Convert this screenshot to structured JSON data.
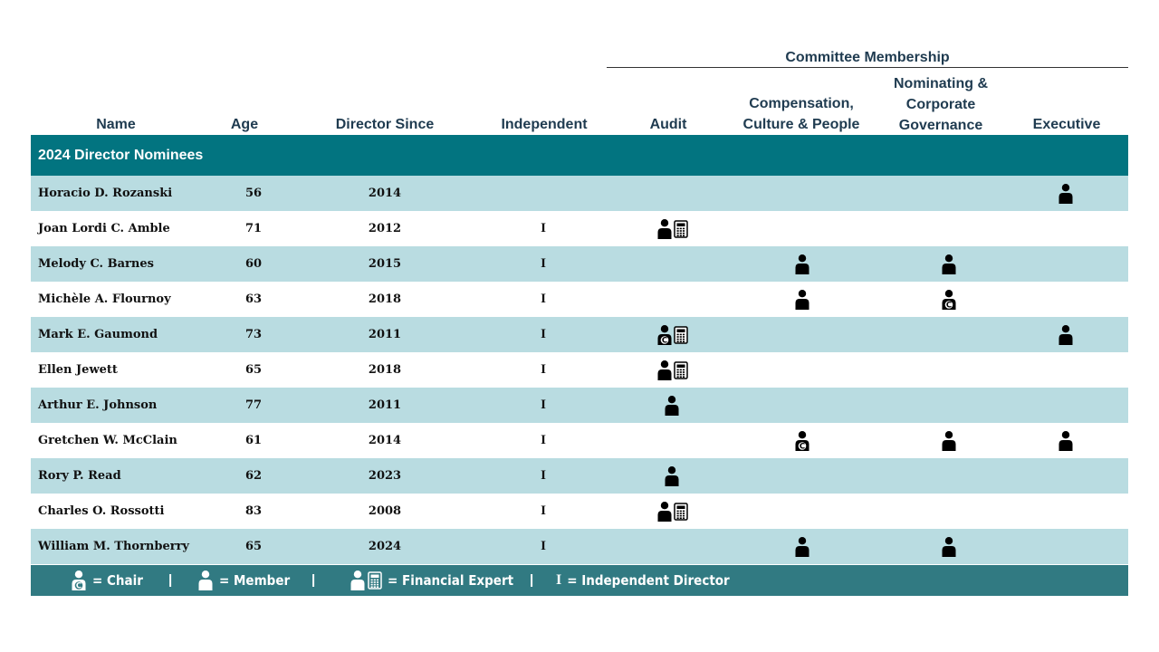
{
  "header": {
    "committee_membership": "Committee Membership",
    "columns": {
      "name": "Name",
      "age": "Age",
      "director_since": "Director Since",
      "independent": "Independent",
      "audit": "Audit",
      "compensation_line1": "Compensation,",
      "compensation_line2": "Culture & People",
      "nominating_line1": "Nominating &",
      "nominating_line2": "Corporate",
      "nominating_line3": "Governance",
      "executive": "Executive"
    }
  },
  "section_title": "2024 Director Nominees",
  "independent_mark": "I",
  "rows": [
    {
      "name": "Horacio D. Rozanski",
      "age": "56",
      "since": "2014",
      "independent": "",
      "audit": "",
      "compensation": "",
      "nominating": "",
      "executive": "member"
    },
    {
      "name": "Joan Lordi C. Amble",
      "age": "71",
      "since": "2012",
      "independent": "I",
      "audit": "financial-expert",
      "compensation": "",
      "nominating": "",
      "executive": ""
    },
    {
      "name": "Melody C. Barnes",
      "age": "60",
      "since": "2015",
      "independent": "I",
      "audit": "",
      "compensation": "member",
      "nominating": "member",
      "executive": ""
    },
    {
      "name": "Michèle A. Flournoy",
      "age": "63",
      "since": "2018",
      "independent": "I",
      "audit": "",
      "compensation": "member",
      "nominating": "chair",
      "executive": ""
    },
    {
      "name": "Mark E. Gaumond",
      "age": "73",
      "since": "2011",
      "independent": "I",
      "audit": "chair-financial-expert",
      "compensation": "",
      "nominating": "",
      "executive": "member"
    },
    {
      "name": "Ellen Jewett",
      "age": "65",
      "since": "2018",
      "independent": "I",
      "audit": "financial-expert",
      "compensation": "",
      "nominating": "",
      "executive": ""
    },
    {
      "name": "Arthur E. Johnson",
      "age": "77",
      "since": "2011",
      "independent": "I",
      "audit": "member",
      "compensation": "",
      "nominating": "",
      "executive": ""
    },
    {
      "name": "Gretchen W. McClain",
      "age": "61",
      "since": "2014",
      "independent": "I",
      "audit": "",
      "compensation": "chair",
      "nominating": "member",
      "executive": "member"
    },
    {
      "name": "Rory P. Read",
      "age": "62",
      "since": "2023",
      "independent": "I",
      "audit": "member",
      "compensation": "",
      "nominating": "",
      "executive": ""
    },
    {
      "name": "Charles O. Rossotti",
      "age": "83",
      "since": "2008",
      "independent": "I",
      "audit": "financial-expert",
      "compensation": "",
      "nominating": "",
      "executive": ""
    },
    {
      "name": "William M. Thornberry",
      "age": "65",
      "since": "2024",
      "independent": "I",
      "audit": "",
      "compensation": "member",
      "nominating": "member",
      "executive": ""
    }
  ],
  "legend": {
    "chair": "= Chair",
    "member": "= Member",
    "financial_expert": "= Financial Expert",
    "independent_symbol": "I",
    "independent": "= Independent Director",
    "separator": "|"
  },
  "colors": {
    "section_bg": "#027480",
    "row_shade": "#b9dce1",
    "legend_bg": "#317a82"
  }
}
